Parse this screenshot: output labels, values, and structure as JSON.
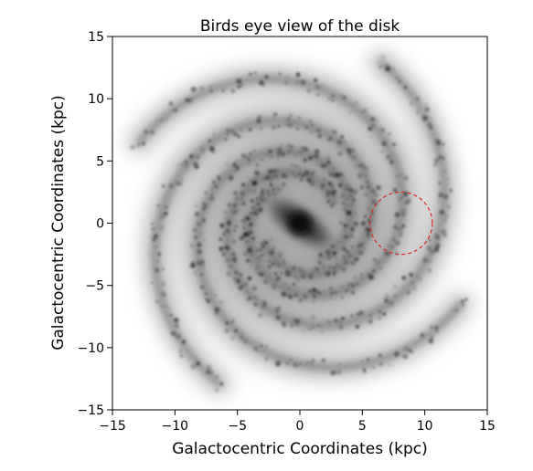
{
  "chart_data": {
    "type": "heatmap",
    "title": "Birds eye view of the disk",
    "xlabel": "Galactocentric Coordinates (kpc)",
    "ylabel": "Galactocentric Coordinates (kpc)",
    "xlim": [
      -15,
      15
    ],
    "ylim": [
      -15,
      15
    ],
    "xticks": [
      -15,
      -10,
      -5,
      0,
      5,
      10,
      15
    ],
    "yticks": [
      -15,
      -10,
      -5,
      0,
      5,
      10,
      15
    ],
    "xtick_labels": [
      "−15",
      "−10",
      "−5",
      "0",
      "5",
      "10",
      "15"
    ],
    "ytick_labels": [
      "−15",
      "−10",
      "−5",
      "0",
      "5",
      "10",
      "15"
    ],
    "colormap": "greys",
    "grid": false,
    "features": {
      "galactic_center": [
        0,
        0
      ],
      "bar_angle_deg": 35,
      "spiral_arms": 4
    },
    "marker_circle": {
      "center": [
        8.1,
        0
      ],
      "radius": 2.5,
      "color": "#e02020",
      "style": "dashed"
    }
  }
}
